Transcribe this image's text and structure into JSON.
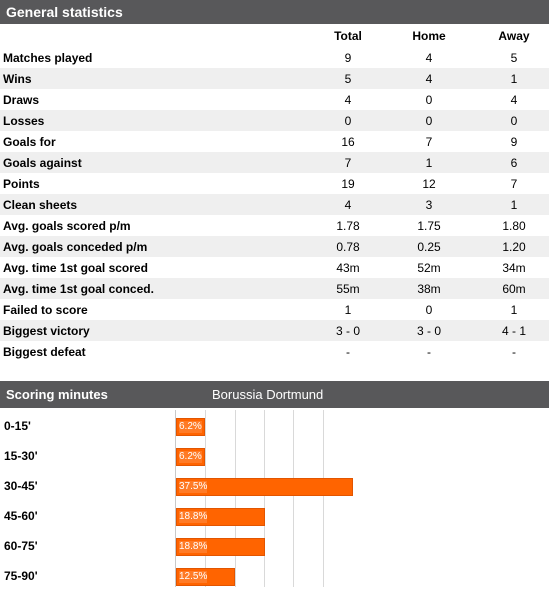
{
  "general": {
    "title": "General statistics",
    "columns": {
      "total": "Total",
      "home": "Home",
      "away": "Away"
    },
    "rows": [
      {
        "label": "Matches played",
        "total": "9",
        "home": "4",
        "away": "5"
      },
      {
        "label": "Wins",
        "total": "5",
        "home": "4",
        "away": "1"
      },
      {
        "label": "Draws",
        "total": "4",
        "home": "0",
        "away": "4"
      },
      {
        "label": "Losses",
        "total": "0",
        "home": "0",
        "away": "0"
      },
      {
        "label": "Goals for",
        "total": "16",
        "home": "7",
        "away": "9"
      },
      {
        "label": "Goals against",
        "total": "7",
        "home": "1",
        "away": "6"
      },
      {
        "label": "Points",
        "total": "19",
        "home": "12",
        "away": "7"
      },
      {
        "label": "Clean sheets",
        "total": "4",
        "home": "3",
        "away": "1"
      },
      {
        "label": "Avg. goals scored p/m",
        "total": "1.78",
        "home": "1.75",
        "away": "1.80"
      },
      {
        "label": "Avg. goals conceded p/m",
        "total": "0.78",
        "home": "0.25",
        "away": "1.20"
      },
      {
        "label": "Avg. time 1st goal scored",
        "total": "43m",
        "home": "52m",
        "away": "34m"
      },
      {
        "label": "Avg. time 1st goal conced.",
        "total": "55m",
        "home": "38m",
        "away": "60m"
      },
      {
        "label": "Failed to score",
        "total": "1",
        "home": "0",
        "away": "1"
      },
      {
        "label": "Biggest victory",
        "total": "3 - 0",
        "home": "3 - 0",
        "away": "4 - 1"
      },
      {
        "label": "Biggest defeat",
        "total": "-",
        "home": "-",
        "away": "-"
      }
    ]
  },
  "scoring": {
    "title": "Scoring minutes",
    "team": "Borussia Dortmund",
    "bar_color": "#ff6400",
    "header_color": "#58585a"
  },
  "chart_data": {
    "type": "bar",
    "categories": [
      "0-15'",
      "15-30'",
      "30-45'",
      "45-60'",
      "60-75'",
      "75-90'"
    ],
    "values": [
      6.2,
      6.2,
      37.5,
      18.8,
      18.8,
      12.5
    ],
    "value_labels": [
      "6.2%",
      "6.2%",
      "37.5%",
      "18.8%",
      "18.8%",
      "12.5%"
    ],
    "orientation": "horizontal",
    "grid": true
  }
}
